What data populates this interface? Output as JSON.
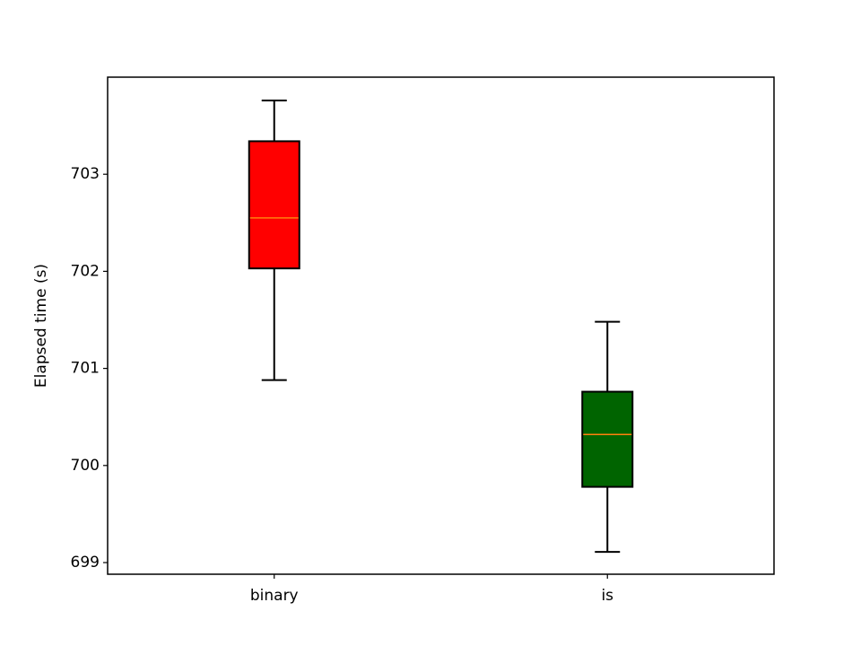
{
  "chart_data": {
    "type": "box",
    "y_label": "Elapsed time (s)",
    "categories": [
      "binary",
      "is"
    ],
    "boxes": [
      {
        "color": "#ff0000",
        "min": 700.88,
        "q1": 702.03,
        "median": 702.55,
        "q3": 703.34,
        "max": 703.76
      },
      {
        "color": "#006400",
        "min": 699.11,
        "q1": 699.78,
        "median": 700.32,
        "q3": 700.76,
        "max": 701.48
      }
    ],
    "median_color": "#ff7f0e",
    "ylim": [
      698.88,
      704.0
    ],
    "yticks": [
      699,
      700,
      701,
      702,
      703
    ],
    "grid": false
  }
}
